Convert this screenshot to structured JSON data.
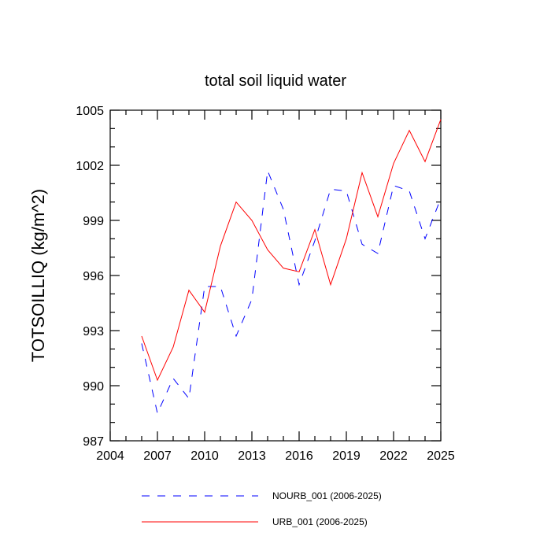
{
  "chart_data": {
    "type": "line",
    "title": "total soil liquid water",
    "xlabel": "",
    "ylabel": "TOTSOILLIQ  (kg/m^2)",
    "xlim": [
      2004,
      2025
    ],
    "ylim": [
      987,
      1005
    ],
    "x_ticks": [
      2004,
      2007,
      2010,
      2013,
      2016,
      2019,
      2022,
      2025
    ],
    "y_ticks": [
      987,
      990,
      993,
      996,
      999,
      1002,
      1005
    ],
    "x": [
      2006,
      2007,
      2008,
      2009,
      2010,
      2011,
      2012,
      2013,
      2014,
      2015,
      2016,
      2017,
      2018,
      2019,
      2020,
      2021,
      2022,
      2023,
      2024,
      2025
    ],
    "series": [
      {
        "name": "NOURB_001 (2006-2025)",
        "color": "#0000ff",
        "dash": "dashed",
        "values": [
          992.3,
          988.5,
          990.4,
          989.3,
          995.4,
          995.4,
          992.7,
          994.7,
          1001.7,
          999.6,
          995.5,
          997.9,
          1000.7,
          1000.6,
          997.7,
          997.2,
          1000.9,
          1000.6,
          998.0,
          1000.2
        ]
      },
      {
        "name": "URB_001 (2006-2025)",
        "color": "#ff0000",
        "dash": "solid",
        "values": [
          992.7,
          990.3,
          992.1,
          995.2,
          994.0,
          997.6,
          1000.0,
          999.0,
          997.4,
          996.4,
          996.2,
          998.5,
          995.5,
          998.0,
          1001.6,
          999.2,
          1002.1,
          1003.9,
          1002.2,
          1004.5
        ]
      }
    ],
    "legend_position": "bottom"
  }
}
